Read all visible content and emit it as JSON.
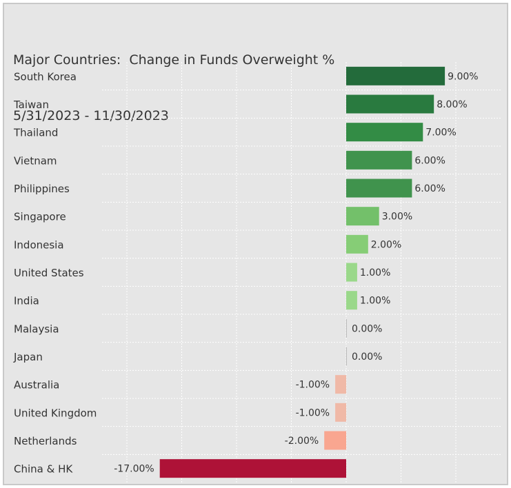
{
  "chart_data": {
    "type": "bar",
    "orientation": "horizontal",
    "title": "Major Countries:  Change in Funds Overweight %",
    "subtitle": "5/31/2023 - 11/30/2023",
    "xlim": [
      -20,
      10
    ],
    "grid": true,
    "categories": [
      "South Korea",
      "Taiwan",
      "Thailand",
      "Vietnam",
      "Philippines",
      "Singapore",
      "Indonesia",
      "United States",
      "India",
      "Malaysia",
      "Japan",
      "Australia",
      "United Kingdom",
      "Netherlands",
      "China & HK"
    ],
    "values": [
      9,
      8,
      7,
      6,
      6,
      3,
      2,
      1,
      1,
      0,
      0,
      -1,
      -1,
      -2,
      -17
    ],
    "labels": [
      "9.00%",
      "8.00%",
      "7.00%",
      "6.00%",
      "6.00%",
      "3.00%",
      "2.00%",
      "1.00%",
      "1.00%",
      "0.00%",
      "0.00%",
      "-1.00%",
      "-1.00%",
      "-2.00%",
      "-17.00%"
    ],
    "colors": [
      "#236b3b",
      "#297a3f",
      "#338c45",
      "#40934d",
      "#40934d",
      "#73c06a",
      "#86cd76",
      "#9ad88a",
      "#9ad88a",
      "#b9b9b9",
      "#b9b9b9",
      "#f0b9a7",
      "#f0b9a7",
      "#f9a690",
      "#ae1237"
    ]
  }
}
